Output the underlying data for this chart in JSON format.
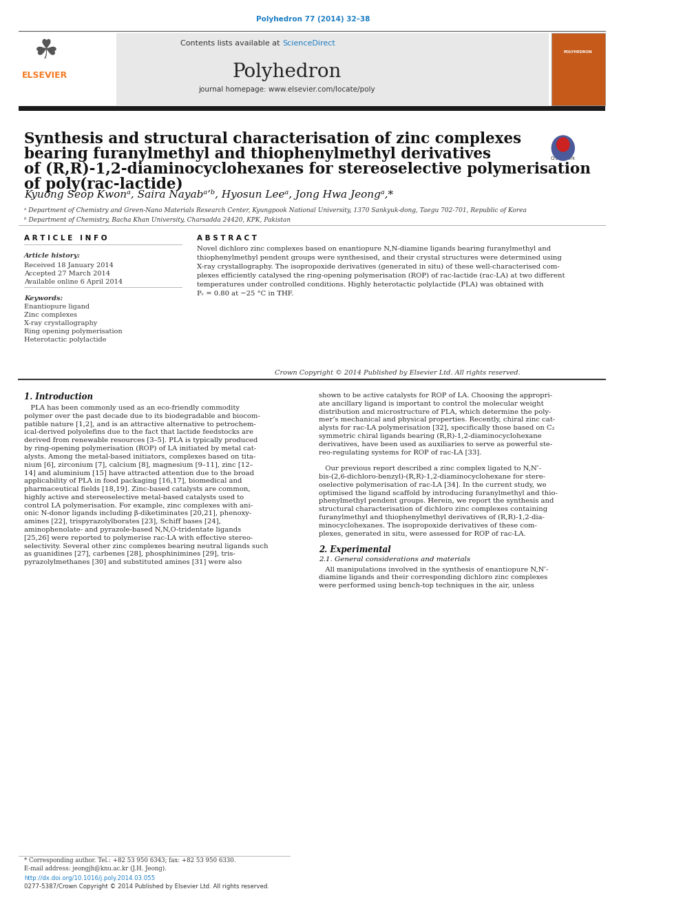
{
  "page_bg": "#ffffff",
  "top_journal_ref": "Polyhedron 77 (2014) 32–38",
  "top_journal_ref_color": "#1a7dc4",
  "header_bg": "#e8e8e8",
  "link_color": "#1a7dc4",
  "thick_bar_color": "#1a1a1a",
  "title_line1": "Synthesis and structural characterisation of zinc complexes",
  "title_line2": "bearing furanylmethyl and thiophenylmethyl derivatives",
  "title_line3": "of (R,R)-1,2-diaminocyclohexanes for stereoselective polymerisation",
  "title_line4": "of poly(rac-lactide)",
  "article_info_header": "A R T I C L E   I N F O",
  "abstract_header": "A B S T R A C T",
  "article_history_label": "Article history:",
  "received": "Received 18 January 2014",
  "accepted": "Accepted 27 March 2014",
  "available": "Available online 6 April 2014",
  "keywords_label": "Keywords:",
  "keyword1": "Enantiopure ligand",
  "keyword2": "Zinc complexes",
  "keyword3": "X-ray crystallography",
  "keyword4": "Ring opening polymerisation",
  "keyword5": "Heterotactic polylactide",
  "copyright_text": "Crown Copyright © 2014 Published by Elsevier Ltd. All rights reserved.",
  "intro_header": "1. Introduction",
  "section2_header": "2. Experimental",
  "section21_header": "2.1. General considerations and materials",
  "footnote_corresponding": "* Corresponding author. Tel.: +82 53 950 6343; fax: +82 53 950 6330.",
  "footnote_email": "E-mail address: jeongjh@knu.ac.kr (J.H. Jeong).",
  "doi_text": "http://dx.doi.org/10.1016/j.poly.2014.03.055",
  "issn_text": "0277-5387/Crown Copyright © 2014 Published by Elsevier Ltd. All rights reserved.",
  "col1_body_lines": [
    "   PLA has been commonly used as an eco-friendly commodity",
    "polymer over the past decade due to its biodegradable and biocom-",
    "patible nature [1,2], and is an attractive alternative to petrochem-",
    "ical-derived polyolefins due to the fact that lactide feedstocks are",
    "derived from renewable resources [3–5]. PLA is typically produced",
    "by ring-opening polymerisation (ROP) of LA initiated by metal cat-",
    "alysts. Among the metal-based initiators, complexes based on tita-",
    "nium [6], zirconium [7], calcium [8], magnesium [9–11], zinc [12–",
    "14] and aluminium [15] have attracted attention due to the broad",
    "applicability of PLA in food packaging [16,17], biomedical and",
    "pharmaceutical fields [18,19]. Zinc-based catalysts are common,",
    "highly active and stereoselective metal-based catalysts used to",
    "control LA polymerisation. For example, zinc complexes with ani-",
    "onic N-donor ligands including β-diketiminates [20,21], phenoxy-",
    "amines [22], trispyrazolylborates [23], Schiff bases [24],",
    "aminophenolate- and pyrazole-based N,N,O-tridentate ligands",
    "[25,26] were reported to polymerise rac-LA with effective stereo-",
    "selectivity. Several other zinc complexes bearing neutral ligands such",
    "as guanidines [27], carbenes [28], phosphinimines [29], tris-",
    "pyrazolylmethanes [30] and substituted amines [31] were also"
  ],
  "col2_body_lines": [
    "shown to be active catalysts for ROP of LA. Choosing the appropri-",
    "ate ancillary ligand is important to control the molecular weight",
    "distribution and microstructure of PLA, which determine the poly-",
    "mer’s mechanical and physical properties. Recently, chiral zinc cat-",
    "alysts for rac-LA polymerisation [32], specifically those based on C₂",
    "symmetric chiral ligands bearing (R,R)-1,2-diaminocyclohexane",
    "derivatives, have been used as auxiliaries to serve as powerful ste-",
    "reo-regulating systems for ROP of rac-LA [33].",
    "",
    "   Our previous report described a zinc complex ligated to N,Nʹ-",
    "bis-(2,6-dichloro-benzyl)-(R,R)-1,2-diaminocyclohexane for stere-",
    "oselective polymerisation of rac-LA [34]. In the current study, we",
    "optimised the ligand scaffold by introducing furanylmethyl and thio-",
    "phenylmethyl pendent groups. Herein, we report the synthesis and",
    "structural characterisation of dichloro zinc complexes containing",
    "furanylmethyl and thiophenylmethyl derivatives of (R,R)-1,2-dia-",
    "minocyclohexanes. The isopropoxide derivatives of these com-",
    "plexes, generated in situ, were assessed for ROP of rac-LA."
  ],
  "abstract_lines": [
    "Novel dichloro zinc complexes based on enantiopure N,N-diamine ligands bearing furanylmethyl and",
    "thiophenylmethyl pendent groups were synthesised, and their crystal structures were determined using",
    "X-ray crystallography. The isopropoxide derivatives (generated in situ) of these well-characterised com-",
    "plexes efficiently catalysed the ring-opening polymerisation (ROP) of rac-lactide (rac-LA) at two different",
    "temperatures under controlled conditions. Highly heterotactic polylactide (PLA) was obtained with",
    "Pᵣ = 0.80 at −25 °C in THF."
  ],
  "sec21_lines": [
    "   All manipulations involved in the synthesis of enantiopure N,Nʹ-",
    "diamine ligands and their corresponding dichloro zinc complexes",
    "were performed using bench-top techniques in the air, unless"
  ]
}
